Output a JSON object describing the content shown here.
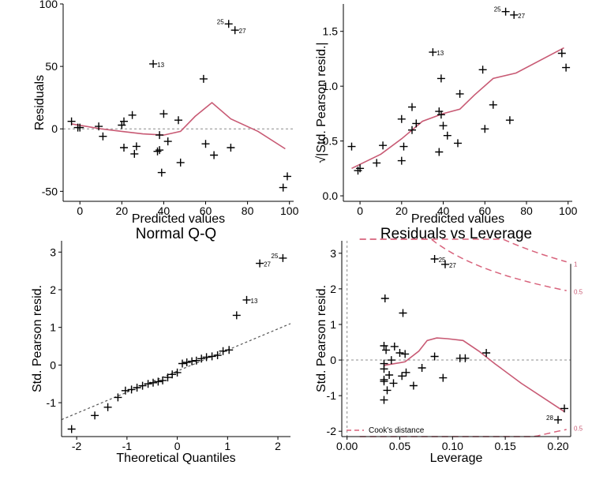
{
  "colors": {
    "smooth": "#C85A74",
    "cooks": "#D8637C",
    "ref": "#8c8c8c",
    "axis": "#000000"
  },
  "chart_data": [
    {
      "id": "resfit",
      "type": "scatter",
      "title": "",
      "xlabel": "Predicted values",
      "ylabel": "Residuals",
      "xlim": [
        -8,
        102
      ],
      "ylim": [
        -58,
        100
      ],
      "xticks": [
        0,
        20,
        40,
        60,
        80,
        100
      ],
      "xticklabels": [
        "0",
        "20",
        "40",
        "60",
        "80",
        "100"
      ],
      "yticks": [
        -50,
        0,
        50,
        100
      ],
      "yticklabels": [
        "-50",
        "0",
        "50",
        "100"
      ],
      "hline": 0,
      "points": [
        {
          "x": -4,
          "y": 6
        },
        {
          "x": -1,
          "y": 1
        },
        {
          "x": 0,
          "y": 1
        },
        {
          "x": 9,
          "y": 2
        },
        {
          "x": 11,
          "y": -6
        },
        {
          "x": 20,
          "y": 3
        },
        {
          "x": 21,
          "y": 6
        },
        {
          "x": 21,
          "y": -15
        },
        {
          "x": 25,
          "y": 11
        },
        {
          "x": 26,
          "y": -20
        },
        {
          "x": 27,
          "y": -14
        },
        {
          "x": 35,
          "y": 52,
          "label": "13"
        },
        {
          "x": 37,
          "y": -18
        },
        {
          "x": 38,
          "y": -5
        },
        {
          "x": 38,
          "y": -17
        },
        {
          "x": 39,
          "y": -35
        },
        {
          "x": 40,
          "y": 12
        },
        {
          "x": 42,
          "y": -10
        },
        {
          "x": 47,
          "y": 7
        },
        {
          "x": 48,
          "y": -27
        },
        {
          "x": 59,
          "y": 40
        },
        {
          "x": 60,
          "y": -12
        },
        {
          "x": 64,
          "y": -21
        },
        {
          "x": 71,
          "y": 84,
          "label": "25"
        },
        {
          "x": 72,
          "y": -15
        },
        {
          "x": 74,
          "y": 79,
          "label": "27"
        },
        {
          "x": 97,
          "y": -47
        },
        {
          "x": 99,
          "y": -38
        }
      ],
      "smooth": [
        [
          -4,
          4
        ],
        [
          10,
          0
        ],
        [
          20,
          -2
        ],
        [
          30,
          -4
        ],
        [
          40,
          -5
        ],
        [
          48,
          -2
        ],
        [
          55,
          10
        ],
        [
          63,
          21
        ],
        [
          72,
          8
        ],
        [
          85,
          -2
        ],
        [
          98,
          -16
        ]
      ]
    },
    {
      "id": "scaleloc",
      "type": "scatter",
      "title": "",
      "xlabel": "Predicted values",
      "ylabel": "√|Std. Pearson resid.|",
      "xlim": [
        -8,
        102
      ],
      "ylim": [
        -0.05,
        1.75
      ],
      "xticks": [
        0,
        20,
        40,
        60,
        80,
        100
      ],
      "xticklabels": [
        "0",
        "20",
        "40",
        "60",
        "80",
        "100"
      ],
      "yticks": [
        0.0,
        0.5,
        1.0,
        1.5
      ],
      "yticklabels": [
        "0.0",
        "0.5",
        "1.0",
        "1.5"
      ],
      "points": [
        {
          "x": -4,
          "y": 0.45
        },
        {
          "x": -1,
          "y": 0.23
        },
        {
          "x": 0,
          "y": 0.25
        },
        {
          "x": 8,
          "y": 0.3
        },
        {
          "x": 11,
          "y": 0.46
        },
        {
          "x": 20,
          "y": 0.7
        },
        {
          "x": 20,
          "y": 0.32
        },
        {
          "x": 21,
          "y": 0.45
        },
        {
          "x": 25,
          "y": 0.6
        },
        {
          "x": 25,
          "y": 0.81
        },
        {
          "x": 27,
          "y": 0.66
        },
        {
          "x": 35,
          "y": 1.31,
          "label": "13"
        },
        {
          "x": 38,
          "y": 0.77
        },
        {
          "x": 38,
          "y": 0.4
        },
        {
          "x": 39,
          "y": 1.07
        },
        {
          "x": 39,
          "y": 0.74
        },
        {
          "x": 40,
          "y": 0.64
        },
        {
          "x": 42,
          "y": 0.55
        },
        {
          "x": 47,
          "y": 0.48
        },
        {
          "x": 48,
          "y": 0.93
        },
        {
          "x": 59,
          "y": 1.15
        },
        {
          "x": 60,
          "y": 0.61
        },
        {
          "x": 64,
          "y": 0.83
        },
        {
          "x": 70,
          "y": 1.68,
          "label": "25"
        },
        {
          "x": 72,
          "y": 0.69
        },
        {
          "x": 74,
          "y": 1.65,
          "label": "27"
        },
        {
          "x": 97,
          "y": 1.3
        },
        {
          "x": 99,
          "y": 1.17
        }
      ],
      "smooth": [
        [
          -4,
          0.25
        ],
        [
          10,
          0.38
        ],
        [
          20,
          0.52
        ],
        [
          30,
          0.68
        ],
        [
          40,
          0.75
        ],
        [
          48,
          0.79
        ],
        [
          55,
          0.92
        ],
        [
          64,
          1.07
        ],
        [
          75,
          1.12
        ],
        [
          98,
          1.35
        ]
      ]
    },
    {
      "id": "qq",
      "type": "scatter",
      "title": "Normal Q-Q",
      "xlabel": "Theoretical Quantiles",
      "ylabel": "Std. Pearson resid.",
      "xlim": [
        -2.3,
        2.25
      ],
      "ylim": [
        -1.9,
        3.3
      ],
      "xticks": [
        -2,
        -1,
        0,
        1,
        2
      ],
      "xticklabels": [
        "-2",
        "-1",
        "0",
        "1",
        "2"
      ],
      "yticks": [
        -1,
        0,
        1,
        2,
        3
      ],
      "yticklabels": [
        "-1",
        "0",
        "1",
        "2",
        "3"
      ],
      "refline": [
        [
          -2.3,
          -1.45
        ],
        [
          2.25,
          1.1
        ]
      ],
      "points": [
        {
          "x": -2.1,
          "y": -1.7
        },
        {
          "x": -1.64,
          "y": -1.34
        },
        {
          "x": -1.38,
          "y": -1.12
        },
        {
          "x": -1.18,
          "y": -0.86
        },
        {
          "x": -1.03,
          "y": -0.68
        },
        {
          "x": -0.91,
          "y": -0.65
        },
        {
          "x": -0.8,
          "y": -0.6
        },
        {
          "x": -0.69,
          "y": -0.55
        },
        {
          "x": -0.58,
          "y": -0.5
        },
        {
          "x": -0.48,
          "y": -0.47
        },
        {
          "x": -0.38,
          "y": -0.44
        },
        {
          "x": -0.29,
          "y": -0.41
        },
        {
          "x": -0.19,
          "y": -0.33
        },
        {
          "x": -0.1,
          "y": -0.25
        },
        {
          "x": 0,
          "y": -0.2
        },
        {
          "x": 0.1,
          "y": 0.04
        },
        {
          "x": 0.19,
          "y": 0.07
        },
        {
          "x": 0.29,
          "y": 0.1
        },
        {
          "x": 0.38,
          "y": 0.12
        },
        {
          "x": 0.48,
          "y": 0.17
        },
        {
          "x": 0.58,
          "y": 0.21
        },
        {
          "x": 0.69,
          "y": 0.23
        },
        {
          "x": 0.8,
          "y": 0.26
        },
        {
          "x": 0.91,
          "y": 0.37
        },
        {
          "x": 1.03,
          "y": 0.4
        },
        {
          "x": 1.18,
          "y": 1.32
        },
        {
          "x": 1.38,
          "y": 1.73,
          "label": "13"
        },
        {
          "x": 1.64,
          "y": 2.7,
          "label": "27"
        },
        {
          "x": 2.1,
          "y": 2.84,
          "label": "25"
        }
      ]
    },
    {
      "id": "lev",
      "type": "scatter",
      "title": "Residuals vs Leverage",
      "xlabel": "Leverage",
      "ylabel": "Std. Pearson resid.",
      "xlim": [
        -0.005,
        0.212
      ],
      "ylim": [
        -2.15,
        3.35
      ],
      "xticks": [
        0.0,
        0.05,
        0.1,
        0.15,
        0.2
      ],
      "xticklabels": [
        "0.00",
        "0.05",
        "0.10",
        "0.15",
        "0.20"
      ],
      "yticks": [
        -2,
        -1,
        0,
        1,
        2,
        3
      ],
      "yticklabels": [
        "-2",
        "-1",
        "0",
        "1",
        "2",
        "3"
      ],
      "hline": 0,
      "vline": 0,
      "legend": "Cook's distance",
      "cook_annotations": [
        "1",
        "0.5",
        "0.5"
      ],
      "points": [
        {
          "x": 0.035,
          "y": 0.4
        },
        {
          "x": 0.035,
          "y": -0.1
        },
        {
          "x": 0.035,
          "y": -0.25
        },
        {
          "x": 0.035,
          "y": -0.55
        },
        {
          "x": 0.035,
          "y": -0.6
        },
        {
          "x": 0.035,
          "y": -1.12
        },
        {
          "x": 0.036,
          "y": 1.73
        },
        {
          "x": 0.037,
          "y": 0.28
        },
        {
          "x": 0.038,
          "y": -0.85
        },
        {
          "x": 0.04,
          "y": -0.42
        },
        {
          "x": 0.042,
          "y": 0.0
        },
        {
          "x": 0.044,
          "y": -0.65
        },
        {
          "x": 0.045,
          "y": 0.38
        },
        {
          "x": 0.05,
          "y": 0.2
        },
        {
          "x": 0.052,
          "y": -0.45
        },
        {
          "x": 0.053,
          "y": 1.32
        },
        {
          "x": 0.055,
          "y": 0.17
        },
        {
          "x": 0.056,
          "y": -0.35
        },
        {
          "x": 0.063,
          "y": -0.72
        },
        {
          "x": 0.071,
          "y": -0.22
        },
        {
          "x": 0.083,
          "y": 2.84,
          "label": "25"
        },
        {
          "x": 0.083,
          "y": 0.1
        },
        {
          "x": 0.091,
          "y": -0.5
        },
        {
          "x": 0.093,
          "y": 2.69,
          "label": "27"
        },
        {
          "x": 0.107,
          "y": 0.05
        },
        {
          "x": 0.112,
          "y": 0.05
        },
        {
          "x": 0.132,
          "y": 0.2
        },
        {
          "x": 0.2,
          "y": -1.68,
          "label": "28"
        },
        {
          "x": 0.206,
          "y": -1.36
        }
      ],
      "smooth": [
        [
          0.035,
          -0.15
        ],
        [
          0.055,
          -0.05
        ],
        [
          0.068,
          0.25
        ],
        [
          0.076,
          0.55
        ],
        [
          0.085,
          0.62
        ],
        [
          0.095,
          0.6
        ],
        [
          0.11,
          0.55
        ],
        [
          0.125,
          0.25
        ],
        [
          0.14,
          -0.1
        ],
        [
          0.165,
          -0.65
        ],
        [
          0.206,
          -1.45
        ]
      ]
    }
  ]
}
